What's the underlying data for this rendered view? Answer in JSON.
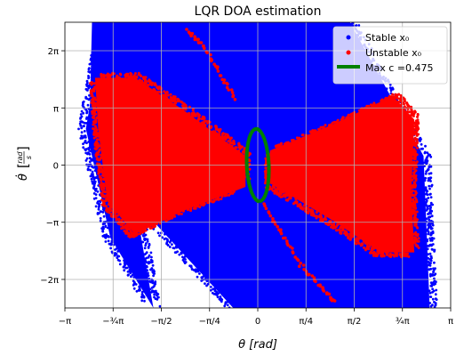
{
  "chart_data": {
    "type": "scatter",
    "title": "LQR DOA estimation",
    "xlabel": "θ [rad]",
    "ylabel_top": "rad",
    "ylabel_bottom": "s",
    "ylabel_symbol": "θ̇",
    "xlim": [
      -3.14159,
      3.14159
    ],
    "ylim": [
      -7.85,
      7.85
    ],
    "grid": true,
    "legend_position": "top-right",
    "x_ticks": [
      {
        "value": -3.14159,
        "label": "−π"
      },
      {
        "value": -2.35619,
        "label": "−¾π"
      },
      {
        "value": -1.5708,
        "label": "−π/2"
      },
      {
        "value": -0.7854,
        "label": "−π/4"
      },
      {
        "value": 0,
        "label": "0"
      },
      {
        "value": 0.7854,
        "label": "π/4"
      },
      {
        "value": 1.5708,
        "label": "π/2"
      },
      {
        "value": 2.35619,
        "label": "¾π"
      },
      {
        "value": 3.14159,
        "label": "π"
      }
    ],
    "y_ticks": [
      {
        "value": -6.28319,
        "label": "−2π"
      },
      {
        "value": -3.14159,
        "label": "−π"
      },
      {
        "value": 0,
        "label": "0"
      },
      {
        "value": 3.14159,
        "label": "π"
      },
      {
        "value": 6.28319,
        "label": "2π"
      }
    ],
    "series": [
      {
        "name": "Stable x₀",
        "color": "#0000ff",
        "kind": "points",
        "region_polygon": [
          [
            -2.7,
            7.85
          ],
          [
            -0.7,
            7.85
          ],
          [
            2.6,
            -1.0
          ],
          [
            2.75,
            -7.85
          ],
          [
            0.7,
            -7.85
          ],
          [
            -2.75,
            1.0
          ]
        ],
        "region_polygon_2": [
          [
            0.5,
            7.85
          ],
          [
            1.5,
            7.85
          ],
          [
            2.7,
            0.5
          ],
          [
            2.8,
            -7.85
          ],
          [
            -0.4,
            -7.85
          ],
          [
            -2.0,
            -2.0
          ],
          [
            -1.7,
            -7.85
          ],
          [
            -2.4,
            -4.0
          ],
          [
            -2.8,
            2.0
          ],
          [
            -2.5,
            7.85
          ]
        ]
      },
      {
        "name": "Unstable x₀",
        "color": "#ff0000",
        "kind": "points",
        "left_lobe": [
          [
            -2.65,
            4.8
          ],
          [
            -2.0,
            4.8
          ],
          [
            -1.2,
            3.0
          ],
          [
            -0.2,
            0.5
          ],
          [
            -0.2,
            -1.2
          ],
          [
            -1.2,
            -2.5
          ],
          [
            -2.0,
            -3.8
          ],
          [
            -2.45,
            -2.0
          ],
          [
            -2.6,
            2.0
          ]
        ],
        "right_lobe": [
          [
            0.2,
            0.8
          ],
          [
            1.2,
            2.2
          ],
          [
            2.2,
            3.8
          ],
          [
            2.55,
            2.5
          ],
          [
            2.5,
            -1.5
          ],
          [
            2.55,
            -4.8
          ],
          [
            2.0,
            -4.8
          ],
          [
            1.2,
            -3.0
          ],
          [
            0.2,
            -1.0
          ]
        ],
        "diagonal_trail": [
          [
            -1.15,
            7.4
          ],
          [
            -0.9,
            6.6
          ],
          [
            -0.6,
            5.0
          ],
          [
            -0.35,
            3.6
          ],
          [
            0.1,
            -2.2
          ],
          [
            0.4,
            -3.8
          ],
          [
            0.7,
            -5.5
          ],
          [
            1.05,
            -6.8
          ],
          [
            1.25,
            -7.5
          ]
        ]
      },
      {
        "name": "Max c =0.475",
        "color": "#008000",
        "kind": "ellipse",
        "center": [
          0,
          0
        ],
        "semi_axis_along": 2.0,
        "semi_axis_across": 0.3,
        "direction": [
          0.095,
          -1.0
        ]
      }
    ],
    "legend": [
      {
        "label": "Stable x₀",
        "marker": "dot",
        "color": "#0000ff"
      },
      {
        "label": "Unstable x₀",
        "marker": "dot",
        "color": "#ff0000"
      },
      {
        "label": "Max c =0.475",
        "marker": "line",
        "color": "#008000"
      }
    ]
  }
}
